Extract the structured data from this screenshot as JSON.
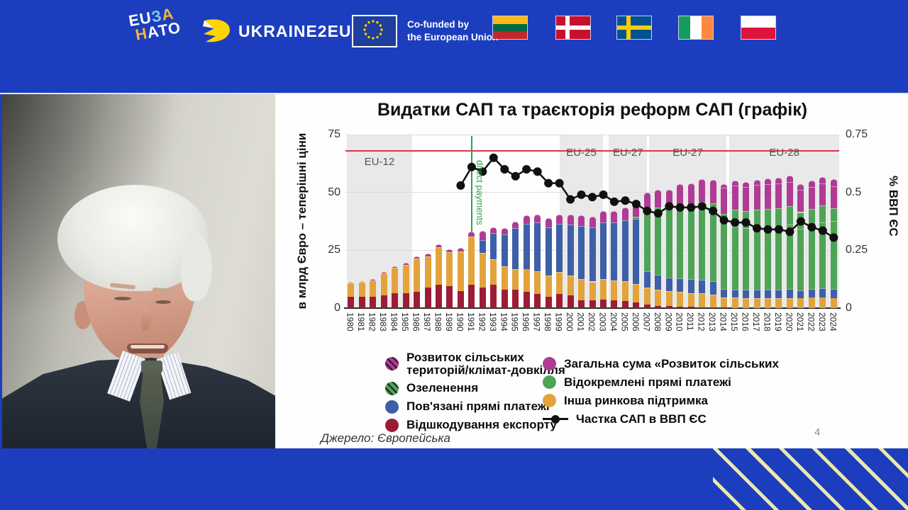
{
  "header": {
    "eu_nato_logo": {
      "part_eu": "EU",
      "part_z": "З",
      "part_a": "А",
      "part_n": "Н",
      "part_ato": "АТО"
    },
    "ukraine2eu_label": "UKRAINE2EU",
    "cofunded_line1": "Co-funded by",
    "cofunded_line2": "the European Union",
    "flags": [
      "Lithuania",
      "Denmark",
      "Sweden",
      "Ireland",
      "Poland"
    ]
  },
  "slide": {
    "title": "Видатки САП та траєкторія реформ САП (графік)",
    "source": "Джерело: Європейська",
    "page_number": "4"
  },
  "chart_data": {
    "type": "bar",
    "subtype": "stacked-bars-with-line-overlay",
    "title": "Видатки САП та траєкторія реформ САП (графік)",
    "ylabel_left": "в млрд Євро – теперішні ціни",
    "ylabel_right": "% ВВП ЄС",
    "y_left": {
      "max": 75,
      "ticks": [
        0,
        25,
        50,
        75
      ]
    },
    "y_right": {
      "max": 0.75,
      "ticks": [
        0,
        0.25,
        0.5,
        0.75
      ]
    },
    "grid": true,
    "years": [
      "1980",
      "1981",
      "1982",
      "1983",
      "1984",
      "1985",
      "1986",
      "1987",
      "1988",
      "1989",
      "1990",
      "1991",
      "1992",
      "1993",
      "1994",
      "1995",
      "1996",
      "1997",
      "1998",
      "1999",
      "2000",
      "2001",
      "2002",
      "2003",
      "2004",
      "2005",
      "2006",
      "2007",
      "2008",
      "2009",
      "2010",
      "2011",
      "2012",
      "2013",
      "2014",
      "2015",
      "2016",
      "2017",
      "2018",
      "2019",
      "2020",
      "2021",
      "2022",
      "2023",
      "2024"
    ],
    "series": [
      {
        "name": "Відшкодування експорту",
        "color": "#9d1c35",
        "hatch": false,
        "values": [
          5,
          4.8,
          5,
          5.5,
          6.5,
          6.5,
          7,
          9,
          10,
          9.5,
          7.5,
          10,
          9,
          10,
          8,
          8,
          7,
          6,
          5,
          6,
          5.5,
          3.5,
          3.5,
          3.7,
          3.5,
          3,
          2.5,
          1.5,
          1,
          0.8,
          0.5,
          0.5,
          0.4,
          0.3,
          0.2,
          0.1,
          0.1,
          0.1,
          0.1,
          0.1,
          0.1,
          0,
          0,
          0,
          0
        ]
      },
      {
        "name": "Інша ринкова підтримка",
        "color": "#e2a33b",
        "hatch": false,
        "values": [
          6,
          6.4,
          7,
          9.5,
          11,
          12.3,
          14.5,
          13.5,
          16.3,
          14.8,
          17,
          21,
          15,
          11,
          10,
          9,
          10,
          10,
          9,
          9.5,
          8.5,
          9,
          8,
          9,
          8.5,
          8.5,
          8,
          7.5,
          7,
          6.5,
          6.5,
          6,
          6,
          5.5,
          4.5,
          4.5,
          4.3,
          4.2,
          4.2,
          4.2,
          4.3,
          4.2,
          4.5,
          4.5,
          4.3
        ]
      },
      {
        "name": "Пов'язані прямі платежі",
        "color": "#3d5fa8",
        "hatch": false,
        "values": [
          0,
          0,
          0,
          0,
          0,
          0,
          0,
          0,
          0,
          0,
          0,
          0,
          5.5,
          11.5,
          14,
          17.5,
          19.5,
          21,
          21,
          21,
          22,
          23,
          23.5,
          24.5,
          25,
          26.5,
          28,
          7,
          6.5,
          6,
          6,
          6,
          6,
          6,
          3.5,
          3.5,
          3.6,
          3.7,
          3.7,
          3.8,
          3.8,
          3.6,
          3.8,
          4,
          4
        ]
      },
      {
        "name": "Відокремлені прямі платежі",
        "color": "#4ea456",
        "hatch": false,
        "values": [
          0,
          0,
          0,
          0,
          0,
          0,
          0,
          0,
          0,
          0,
          0,
          0,
          0,
          0,
          0,
          0,
          0,
          0,
          0,
          0,
          0,
          0,
          0,
          0,
          0,
          0,
          1,
          27,
          29,
          29.5,
          31.5,
          32.5,
          33.5,
          33.5,
          31,
          27,
          26.5,
          27,
          27.5,
          27.5,
          28,
          26.5,
          27.5,
          28.5,
          29.5
        ]
      },
      {
        "name": "Озеленення",
        "color": "#4ea456",
        "hatch": true,
        "values": [
          0,
          0,
          0,
          0,
          0,
          0,
          0,
          0,
          0,
          0,
          0,
          0,
          0,
          0,
          0,
          0,
          0,
          0,
          0,
          0,
          0,
          0,
          0,
          0,
          0,
          0,
          0,
          0,
          0,
          0,
          0,
          0,
          0,
          0,
          1.5,
          7.5,
          7.5,
          7.5,
          7.5,
          7.7,
          7.8,
          7.2,
          7.2,
          7.3,
          5.5
        ]
      },
      {
        "name": "Загальна сума «Розвиток сільських",
        "color": "#b03b95",
        "hatch": false,
        "values": [
          0.3,
          0.3,
          0.5,
          0.5,
          0.5,
          0.7,
          1,
          1,
          1.2,
          1.2,
          1.5,
          2,
          4,
          2.5,
          2.5,
          3,
          3.5,
          3.5,
          4,
          4,
          4.5,
          4.5,
          4.5,
          4.8,
          5,
          5.5,
          6,
          7,
          7.5,
          8.2,
          9,
          9,
          9.8,
          10.1,
          11.3,
          10.4,
          10.5,
          10.7,
          10.5,
          10.5,
          10.5,
          9.5,
          9.5,
          9.7,
          9.4
        ]
      },
      {
        "name": "Розвиток сільських територій/клімат-довкілля",
        "color": "#b03b95",
        "hatch": true,
        "values": [
          0,
          0,
          0,
          0,
          0,
          0,
          0,
          0,
          0,
          0,
          0,
          0,
          0,
          0,
          0,
          0,
          0,
          0,
          0,
          0,
          0,
          0,
          0,
          0,
          0,
          0,
          0,
          0,
          0,
          0,
          0,
          0,
          0,
          0,
          1.5,
          2,
          2,
          2.2,
          2.5,
          2.5,
          2.7,
          2.5,
          2.5,
          2.6,
          3
        ]
      }
    ],
    "line": {
      "name": "Частка САП в ВВП ЄС",
      "color": "#111111",
      "axis": "right",
      "start_index": 10,
      "values": [
        0.53,
        0.61,
        0.59,
        0.65,
        0.6,
        0.57,
        0.6,
        0.59,
        0.54,
        0.54,
        0.47,
        0.49,
        0.48,
        0.49,
        0.46,
        0.465,
        0.45,
        0.42,
        0.41,
        0.44,
        0.435,
        0.435,
        0.44,
        0.42,
        0.38,
        0.37,
        0.37,
        0.345,
        0.34,
        0.34,
        0.33,
        0.375,
        0.35,
        0.335,
        0.305
      ]
    },
    "hline": {
      "value": 68,
      "color": "#d9364a"
    },
    "vline": {
      "year_index": 11,
      "color": "#2da44e",
      "annotation": "direct payments"
    },
    "periods": [
      {
        "label": "EU-12",
        "from": -0.4,
        "to": 5.6,
        "dy": 30
      },
      {
        "label": "EU-25",
        "from": 19,
        "to": 23,
        "dy": 17
      },
      {
        "label": "EU-27",
        "from": 23.5,
        "to": 27,
        "dy": 17
      },
      {
        "label": "EU-27",
        "from": 27.2,
        "to": 34.2,
        "dy": 17
      },
      {
        "label": "EU-28",
        "from": 34.5,
        "to": 44.7,
        "dy": 17
      }
    ],
    "legend_left": [
      {
        "swatch": "hatch",
        "color": "#b03b95",
        "lines": [
          "Розвиток сільських",
          "територій/клімат-довкілля"
        ]
      },
      {
        "swatch": "hatch",
        "color": "#4ea456",
        "lines": [
          "Озеленення"
        ]
      },
      {
        "swatch": "solid",
        "color": "#3d5fa8",
        "lines": [
          "Пов'язані прямі платежі"
        ]
      },
      {
        "swatch": "solid",
        "color": "#9d1c35",
        "lines": [
          "Відшкодування експорту"
        ]
      }
    ],
    "legend_right": [
      {
        "swatch": "solid",
        "color": "#b03b95",
        "lines": [
          "Загальна сума «Розвиток сільських"
        ]
      },
      {
        "swatch": "solid",
        "color": "#4ea456",
        "lines": [
          "Відокремлені прямі платежі"
        ]
      },
      {
        "swatch": "solid",
        "color": "#e2a33b",
        "lines": [
          "Інша ринкова підтримка"
        ]
      },
      {
        "swatch": "line",
        "color": "#111111",
        "lines": [
          "Частка САП в ВВП ЄС"
        ]
      }
    ]
  }
}
